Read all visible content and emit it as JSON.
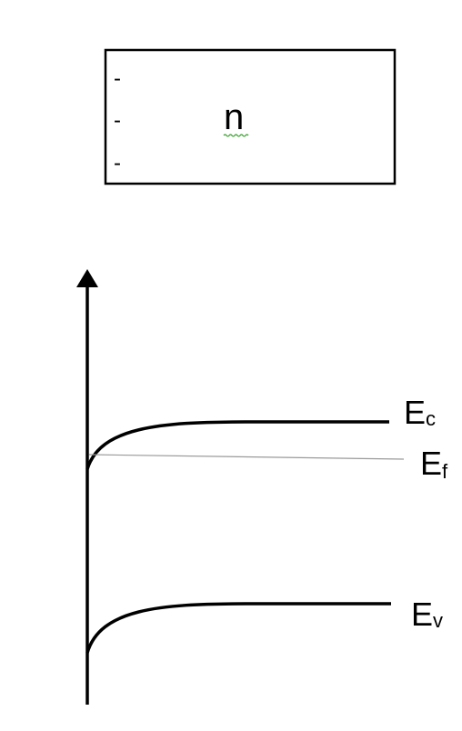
{
  "semiconductor_box": {
    "type_label": "n",
    "surface_charges": [
      "-",
      "-",
      "-"
    ]
  },
  "band_diagram": {
    "levels": [
      {
        "id": "conduction",
        "label_main": "E",
        "label_sub": "c"
      },
      {
        "id": "fermi",
        "label_main": "E",
        "label_sub": "f"
      },
      {
        "id": "valence",
        "label_main": "E",
        "label_sub": "v"
      }
    ],
    "colors": {
      "stroke": "#000000",
      "fermi_line": "#9a9a9a",
      "spell_underline": "#3aa02e"
    }
  }
}
